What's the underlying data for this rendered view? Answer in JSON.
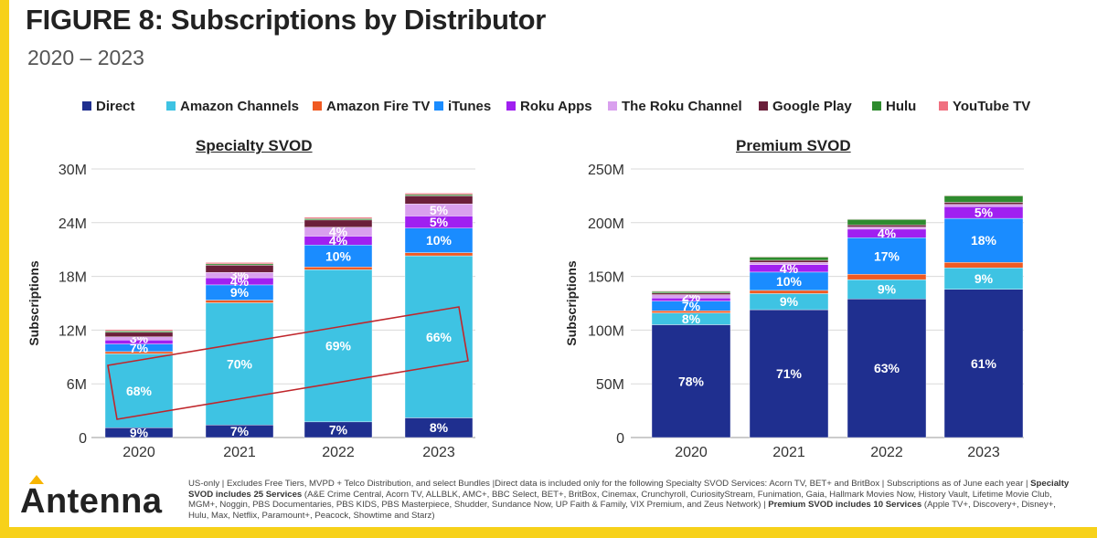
{
  "header": {
    "title": "FIGURE 8: Subscriptions by Distributor",
    "subtitle": "2020 – 2023"
  },
  "legend": [
    {
      "label": "Direct",
      "color": "#1f2f8f"
    },
    {
      "label": "Amazon Channels",
      "color": "#3ec3e3"
    },
    {
      "label": "Amazon Fire TV",
      "color": "#f05a22"
    },
    {
      "label": "iTunes",
      "color": "#1a8cff"
    },
    {
      "label": "Roku Apps",
      "color": "#a020f0"
    },
    {
      "label": "The Roku Channel",
      "color": "#d9a0ee"
    },
    {
      "label": "Google Play",
      "color": "#6b1f3a"
    },
    {
      "label": "Hulu",
      "color": "#2e8b2e"
    },
    {
      "label": "YouTube TV",
      "color": "#f07080"
    }
  ],
  "chart_data": [
    {
      "type": "bar",
      "stacked": true,
      "title": "Specialty SVOD",
      "ylabel": "Subscriptions",
      "categories": [
        "2020",
        "2021",
        "2022",
        "2023"
      ],
      "ylim": [
        0,
        30000000
      ],
      "yticks": [
        "0",
        "6M",
        "12M",
        "18M",
        "24M",
        "30M"
      ],
      "series": [
        {
          "name": "Direct",
          "values": [
            1100000,
            1400000,
            1750000,
            2200000
          ],
          "labels": [
            "9%",
            "7%",
            "7%",
            "8%"
          ]
        },
        {
          "name": "Amazon Channels",
          "values": [
            8250000,
            13650000,
            17000000,
            18100000
          ],
          "labels": [
            "68%",
            "70%",
            "69%",
            "66%"
          ]
        },
        {
          "name": "Amazon Fire TV",
          "values": [
            250000,
            300000,
            300000,
            350000
          ],
          "labels": [
            "",
            "",
            "",
            ""
          ]
        },
        {
          "name": "iTunes",
          "values": [
            850000,
            1700000,
            2450000,
            2750000
          ],
          "labels": [
            "7%",
            "9%",
            "10%",
            "10%"
          ]
        },
        {
          "name": "Roku Apps",
          "values": [
            450000,
            800000,
            1000000,
            1350000
          ],
          "labels": [
            "",
            "4%",
            "4%",
            "5%"
          ]
        },
        {
          "name": "The Roku Channel",
          "values": [
            350000,
            600000,
            1000000,
            1350000
          ],
          "labels": [
            "3%",
            "3%",
            "4%",
            "5%"
          ]
        },
        {
          "name": "Google Play",
          "values": [
            500000,
            800000,
            800000,
            900000
          ],
          "labels": [
            "",
            "",
            "",
            ""
          ]
        },
        {
          "name": "Hulu",
          "values": [
            150000,
            150000,
            150000,
            150000
          ],
          "labels": [
            "",
            "",
            "",
            ""
          ]
        },
        {
          "name": "YouTube TV",
          "values": [
            150000,
            150000,
            150000,
            150000
          ],
          "labels": [
            "",
            "",
            "",
            ""
          ]
        }
      ],
      "highlight": "red outline box around the Amazon Channels segments"
    },
    {
      "type": "bar",
      "stacked": true,
      "title": "Premium SVOD",
      "ylabel": "Subscriptions",
      "categories": [
        "2020",
        "2021",
        "2022",
        "2023"
      ],
      "ylim": [
        0,
        250000000
      ],
      "yticks": [
        "0",
        "50M",
        "100M",
        "150M",
        "200M",
        "250M"
      ],
      "series": [
        {
          "name": "Direct",
          "values": [
            105000000,
            119000000,
            129000000,
            138000000
          ],
          "labels": [
            "78%",
            "71%",
            "63%",
            "61%"
          ]
        },
        {
          "name": "Amazon Channels",
          "values": [
            11000000,
            15000000,
            18000000,
            20000000
          ],
          "labels": [
            "8%",
            "9%",
            "9%",
            "9%"
          ]
        },
        {
          "name": "Amazon Fire TV",
          "values": [
            2000000,
            3000000,
            5000000,
            5000000
          ],
          "labels": [
            "",
            "",
            "",
            ""
          ]
        },
        {
          "name": "iTunes",
          "values": [
            9000000,
            17000000,
            34000000,
            41000000
          ],
          "labels": [
            "7%",
            "10%",
            "17%",
            "18%"
          ]
        },
        {
          "name": "Roku Apps",
          "values": [
            3000000,
            7000000,
            8000000,
            11000000
          ],
          "labels": [
            "",
            "4%",
            "4%",
            "5%"
          ]
        },
        {
          "name": "The Roku Channel",
          "values": [
            3000000,
            2000000,
            2000000,
            2000000
          ],
          "labels": [
            "2%",
            "",
            "",
            ""
          ]
        },
        {
          "name": "Google Play",
          "values": [
            1500000,
            2000000,
            2000000,
            2000000
          ],
          "labels": [
            "",
            "",
            "",
            ""
          ]
        },
        {
          "name": "Hulu",
          "values": [
            1500000,
            3000000,
            5000000,
            6000000
          ],
          "labels": [
            "",
            "",
            "",
            ""
          ]
        },
        {
          "name": "YouTube TV",
          "values": [
            500000,
            500000,
            500000,
            500000
          ],
          "labels": [
            "",
            "",
            "",
            ""
          ]
        }
      ]
    }
  ],
  "logo": {
    "text": "Antenna"
  },
  "footnote": {
    "part1": "US-only | Excludes Free Tiers, MVPD + Telco Distribution, and select Bundles |Direct data is included only for the following Specialty SVOD Services: Acorn TV, BET+ and BritBox | Subscriptions as of June each year | ",
    "bold1": "Specialty SVOD includes 25 Services",
    "part2": " (A&E Crime Central, Acorn TV, ALLBLK, AMC+, BBC Select, BET+, BritBox, Cinemax, Crunchyroll, CuriosityStream, Funimation, Gaia, Hallmark Movies Now, History Vault, Lifetime Movie Club, MGM+, Noggin, PBS Documentaries, PBS KIDS, PBS Masterpiece, Shudder, Sundance Now, UP Faith & Family, VIX Premium, and Zeus Network) | ",
    "bold2": "Premium SVOD includes 10 Services",
    "part3": " (Apple TV+, Discovery+, Disney+, Hulu, Max, Netflix, Paramount+, Peacock, Showtime and Starz)"
  }
}
